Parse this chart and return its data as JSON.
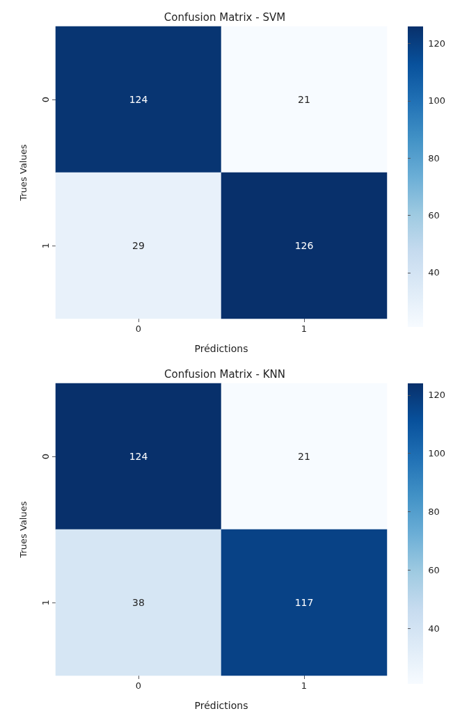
{
  "chart_data": [
    {
      "type": "heatmap",
      "title": "Confusion Matrix - SVM",
      "xlabel": "Prédictions",
      "ylabel": "Trues Values",
      "categories": [
        "0",
        "1"
      ],
      "y_categories": [
        "0",
        "1"
      ],
      "cells": [
        [
          124,
          21
        ],
        [
          29,
          126
        ]
      ],
      "data_labels": true,
      "clim": [
        21,
        126
      ],
      "cticks": [
        40,
        60,
        80,
        100,
        120
      ]
    },
    {
      "type": "heatmap",
      "title": "Confusion Matrix - KNN",
      "xlabel": "Prédictions",
      "ylabel": "Trues Values",
      "categories": [
        "0",
        "1"
      ],
      "y_categories": [
        "0",
        "1"
      ],
      "cells": [
        [
          124,
          21
        ],
        [
          38,
          117
        ]
      ],
      "data_labels": true,
      "clim": [
        21,
        124
      ],
      "cticks": [
        40,
        60,
        80,
        100,
        120
      ]
    }
  ]
}
